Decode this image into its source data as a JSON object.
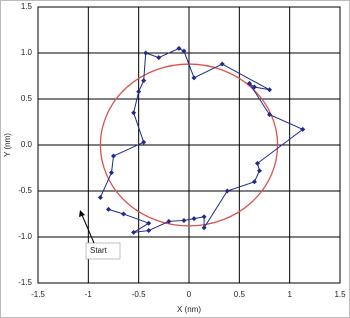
{
  "chart_data": {
    "type": "line",
    "x_label": "X (nm)",
    "y_label": "Y (nm)",
    "x": [
      -0.8,
      -0.65,
      -0.4,
      -0.55,
      -0.4,
      -0.2,
      -0.05,
      0.05,
      0.15,
      0.15,
      0.38,
      0.65,
      0.7,
      0.68,
      1.13,
      0.8,
      0.6,
      0.65,
      0.8,
      0.33,
      0.05,
      -0.05,
      -0.1,
      -0.3,
      -0.43,
      -0.45,
      -0.5,
      -0.55,
      -0.45,
      -0.75,
      -0.77,
      -0.88
    ],
    "values": [
      -0.7,
      -0.75,
      -0.85,
      -0.95,
      -0.93,
      -0.83,
      -0.82,
      -0.8,
      -0.78,
      -0.9,
      -0.5,
      -0.4,
      -0.28,
      -0.2,
      0.17,
      0.33,
      0.67,
      0.63,
      0.6,
      0.88,
      0.73,
      1.02,
      1.05,
      0.95,
      1.0,
      0.7,
      0.58,
      0.35,
      0.03,
      -0.12,
      -0.3,
      -0.57
    ],
    "color": "#1f2a8a",
    "circle": {
      "center": [
        0,
        0
      ],
      "radius": 0.88,
      "color": "#d9534f"
    },
    "annotation": "Start",
    "xlim": [
      -1.5,
      1.5
    ],
    "ylim": [
      -1.5,
      1.5
    ],
    "xticks": [
      -1.5,
      -1,
      -0.5,
      0,
      0.5,
      1,
      1.5
    ],
    "yticks": [
      -1.5,
      {
        "value": -1,
        "label": "-1.0"
      },
      -0.5,
      {
        "value": 0,
        "label": "0.0"
      },
      0.5,
      {
        "value": 1,
        "label": "1.0"
      },
      1.5
    ],
    "grid": true
  }
}
